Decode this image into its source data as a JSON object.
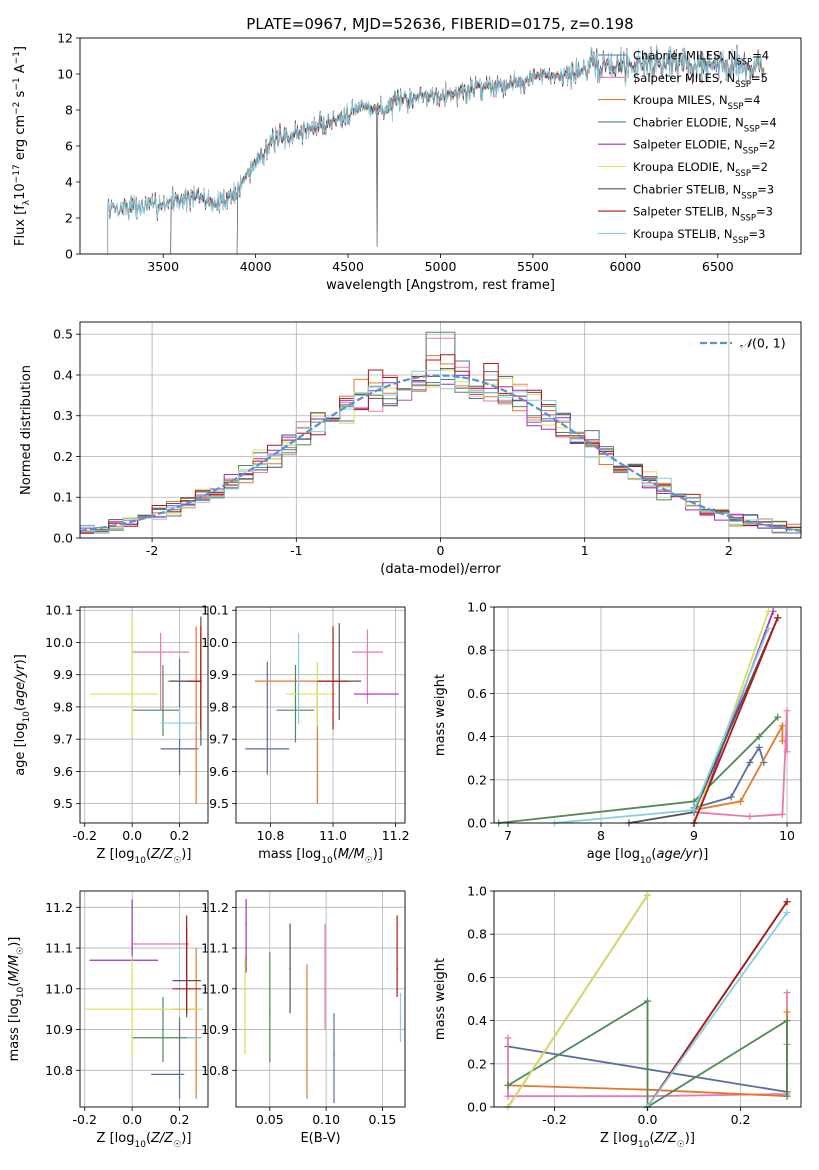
{
  "figure": {
    "title": "PLATE=0967, MJD=52636, FIBERID=0175, z=0.198"
  },
  "colors": {
    "Chabrier MILES": "#5a6e9e",
    "Salpeter MILES": "#e87aaf",
    "Kroupa MILES": "#e2792a",
    "Chabrier ELODIE": "#4f8a56",
    "Salpeter ELODIE": "#a02ec4",
    "Kroupa ELODIE": "#d8e05a",
    "Chabrier STELIB": "#555555",
    "Salpeter STELIB": "#b01818",
    "Kroupa STELIB": "#86cfe0",
    "gaussian": "#5b8fd6"
  },
  "chart_data": [
    {
      "id": "spectrum",
      "type": "line",
      "xlabel": "wavelength [Angstrom, rest frame]",
      "ylabel": "Flux [f_λ 10^-17 erg cm^-2 s^-1 A^-1]",
      "xlim": [
        3050,
        6950
      ],
      "ylim": [
        0,
        12
      ],
      "xticks": [
        3500,
        4000,
        4500,
        5000,
        5500,
        6000,
        6500
      ],
      "yticks": [
        0,
        2,
        4,
        6,
        8,
        10,
        12
      ],
      "grid": false,
      "legend_position": "right",
      "legend": [
        {
          "base": "Chabrier MILES, N",
          "sub": "SSP",
          "tail": "=4"
        },
        {
          "base": "Salpeter MILES, N",
          "sub": "SSP",
          "tail": "=5"
        },
        {
          "base": "Kroupa MILES, N",
          "sub": "SSP",
          "tail": "=4"
        },
        {
          "base": "Chabrier ELODIE, N",
          "sub": "SSP",
          "tail": "=4"
        },
        {
          "base": "Salpeter ELODIE, N",
          "sub": "SSP",
          "tail": "=2"
        },
        {
          "base": "Kroupa ELODIE, N",
          "sub": "SSP",
          "tail": "=2"
        },
        {
          "base": "Chabrier STELIB, N",
          "sub": "SSP",
          "tail": "=3"
        },
        {
          "base": "Salpeter STELIB, N",
          "sub": "SSP",
          "tail": "=3"
        },
        {
          "base": "Kroupa STELIB, N",
          "sub": "SSP",
          "tail": "=3"
        }
      ],
      "continuum": {
        "x": [
          3200,
          3300,
          3450,
          3550,
          3700,
          3800,
          3900,
          4000,
          4100,
          4200,
          4300,
          4400,
          4500,
          4600,
          4700,
          4800,
          4900,
          5000,
          5100,
          5200,
          5300,
          5400,
          5500,
          5600,
          5700,
          5800,
          5900,
          6000,
          6100,
          6200,
          6300,
          6400,
          6500,
          6600,
          6750
        ],
        "y": [
          2.5,
          2.6,
          2.7,
          3.0,
          3.1,
          2.8,
          3.5,
          5.2,
          6.3,
          6.6,
          7.0,
          7.3,
          7.9,
          8.2,
          8.0,
          8.6,
          8.8,
          8.9,
          8.9,
          9.3,
          9.4,
          9.5,
          9.8,
          9.9,
          10.0,
          10.3,
          10.5,
          10.5,
          10.6,
          10.6,
          10.7,
          10.4,
          10.5,
          10.6,
          10.3
        ]
      },
      "series_ranges": {
        "Chabrier MILES": [
          3540,
          6750
        ],
        "Salpeter MILES": [
          3540,
          6750
        ],
        "Kroupa MILES": [
          3540,
          6750
        ],
        "Chabrier ELODIE": [
          3900,
          6750
        ],
        "Salpeter ELODIE": [
          3900,
          6750
        ],
        "Kroupa ELODIE": [
          3900,
          6750
        ],
        "Chabrier STELIB": [
          3200,
          6750
        ],
        "Salpeter STELIB": [
          3200,
          6750
        ],
        "Kroupa STELIB": [
          3200,
          6750
        ]
      }
    },
    {
      "id": "residuals",
      "type": "line",
      "xlabel": "(data-model)/error",
      "ylabel": "Normed distribution",
      "xlim": [
        -2.5,
        2.5
      ],
      "ylim": [
        0,
        0.53
      ],
      "xticks": [
        -2,
        -1,
        0,
        1,
        2
      ],
      "yticks": [
        0.0,
        0.1,
        0.2,
        0.3,
        0.4,
        0.5
      ],
      "grid": true,
      "legend_position": "top-right",
      "legend_label": "N(0,1)",
      "bin_width": 0.1,
      "bin_start": -2.5,
      "bins": 50
    },
    {
      "id": "age_vs_Z",
      "type": "scatter",
      "xlabel": "Z [log10(Z/Z☉)]",
      "ylabel": "age [log10(age/yr)]",
      "xlim": [
        -0.22,
        0.32
      ],
      "ylim": [
        9.44,
        10.11
      ],
      "xticks": [
        -0.2,
        0.0,
        0.2
      ],
      "yticks": [
        9.5,
        9.6,
        9.7,
        9.8,
        9.9,
        10.0,
        10.1
      ],
      "grid": true,
      "points": [
        {
          "model": "Chabrier MILES",
          "x": 0.2,
          "y": 9.67,
          "xerr": [
            0.08,
            0.08
          ],
          "yerr": [
            0.08,
            0.28
          ]
        },
        {
          "model": "Salpeter MILES",
          "x": 0.12,
          "y": 9.97,
          "xerr": [
            0.12,
            0.12
          ],
          "yerr": [
            0.18,
            0.06
          ]
        },
        {
          "model": "Kroupa MILES",
          "x": 0.27,
          "y": 9.88,
          "xerr": [
            0.12,
            0.02
          ],
          "yerr": [
            0.38,
            0.17
          ]
        },
        {
          "model": "Chabrier ELODIE",
          "x": 0.13,
          "y": 9.79,
          "xerr": [
            0.13,
            0.07
          ],
          "yerr": [
            0.08,
            0.14
          ]
        },
        {
          "model": "Salpeter ELODIE",
          "x": 0.29,
          "y": 9.88,
          "xerr": [
            0.08,
            0.0
          ],
          "yerr": [
            0.15,
            0.15
          ]
        },
        {
          "model": "Kroupa ELODIE",
          "x": 0.0,
          "y": 9.84,
          "xerr": [
            0.18,
            0.11
          ],
          "yerr": [
            0.13,
            0.24
          ]
        },
        {
          "model": "Chabrier STELIB",
          "x": 0.29,
          "y": 9.88,
          "xerr": [
            0.13,
            0.0
          ],
          "yerr": [
            0.2,
            0.2
          ]
        },
        {
          "model": "Salpeter STELIB",
          "x": 0.29,
          "y": 9.88,
          "xerr": [
            0.05,
            0.0
          ],
          "yerr": [
            0.15,
            0.17
          ]
        },
        {
          "model": "Kroupa STELIB",
          "x": 0.2,
          "y": 9.75,
          "xerr": [
            0.08,
            0.08
          ],
          "yerr": [
            0.05,
            0.05
          ]
        }
      ]
    },
    {
      "id": "age_vs_mass",
      "type": "scatter",
      "xlabel": "mass [log10(M/M☉)]",
      "ylabel": "",
      "xlim": [
        10.69,
        11.23
      ],
      "ylim": [
        9.44,
        10.11
      ],
      "xticks": [
        10.8,
        11.0,
        11.2
      ],
      "yticks": [
        9.5,
        9.6,
        9.7,
        9.8,
        9.9,
        10.0,
        10.1
      ],
      "grid": true,
      "points": [
        {
          "model": "Chabrier MILES",
          "x": 10.79,
          "y": 9.67,
          "xerr": [
            0.07,
            0.07
          ],
          "yerr": [
            0.08,
            0.27
          ]
        },
        {
          "model": "Salpeter MILES",
          "x": 11.11,
          "y": 9.97,
          "xerr": [
            0.05,
            0.05
          ],
          "yerr": [
            0.16,
            0.07
          ]
        },
        {
          "model": "Kroupa MILES",
          "x": 10.95,
          "y": 9.88,
          "xerr": [
            0.2,
            0.0
          ],
          "yerr": [
            0.38,
            0.0
          ]
        },
        {
          "model": "Chabrier ELODIE",
          "x": 10.88,
          "y": 9.79,
          "xerr": [
            0.06,
            0.06
          ],
          "yerr": [
            0.1,
            0.14
          ]
        },
        {
          "model": "Salpeter ELODIE",
          "x": 11.07,
          "y": 9.84,
          "xerr": [
            0.0,
            0.14
          ],
          "yerr": [
            0.0,
            0.0
          ]
        },
        {
          "model": "Kroupa ELODIE",
          "x": 10.95,
          "y": 9.84,
          "xerr": [
            0.1,
            0.06
          ],
          "yerr": [
            0.1,
            0.1
          ]
        },
        {
          "model": "Chabrier STELIB",
          "x": 11.02,
          "y": 9.88,
          "xerr": [
            0.07,
            0.07
          ],
          "yerr": [
            0.12,
            0.18
          ]
        },
        {
          "model": "Salpeter STELIB",
          "x": 11.0,
          "y": 9.88,
          "xerr": [
            0.05,
            0.05
          ],
          "yerr": [
            0.15,
            0.17
          ]
        },
        {
          "model": "Kroupa STELIB",
          "x": 10.89,
          "y": 9.75,
          "xerr": [
            0.0,
            0.0
          ],
          "yerr": [
            0.0,
            0.28
          ]
        }
      ]
    },
    {
      "id": "mass_weight_vs_age",
      "type": "line",
      "xlabel": "age [log10(age/yr)]",
      "ylabel": "mass weight",
      "xlim": [
        6.85,
        10.15
      ],
      "ylim": [
        0,
        1
      ],
      "xticks": [
        7,
        8,
        9,
        10
      ],
      "yticks": [
        0.0,
        0.2,
        0.4,
        0.6,
        0.8,
        1.0
      ],
      "grid": true,
      "series": [
        {
          "model": "Chabrier MILES",
          "x": [
            9.0,
            9.4,
            9.6,
            9.7,
            9.75
          ],
          "y": [
            0.07,
            0.12,
            0.28,
            0.35,
            0.28
          ]
        },
        {
          "model": "Salpeter MILES",
          "x": [
            9.0,
            9.6,
            9.95,
            10.0,
            10.0
          ],
          "y": [
            0.05,
            0.03,
            0.04,
            0.52,
            0.33
          ]
        },
        {
          "model": "Kroupa MILES",
          "x": [
            9.0,
            9.5,
            9.95,
            9.95
          ],
          "y": [
            0.06,
            0.1,
            0.45,
            0.38
          ]
        },
        {
          "model": "Chabrier ELODIE",
          "x": [
            6.9,
            9.0,
            9.7,
            9.9
          ],
          "y": [
            0.0,
            0.1,
            0.4,
            0.49
          ]
        },
        {
          "model": "Salpeter ELODIE",
          "x": [
            9.0,
            9.85
          ],
          "y": [
            0.0,
            0.98
          ]
        },
        {
          "model": "Kroupa ELODIE",
          "x": [
            9.0,
            9.8
          ],
          "y": [
            0.0,
            0.98
          ]
        },
        {
          "model": "Chabrier STELIB",
          "x": [
            8.3,
            9.0,
            9.9
          ],
          "y": [
            0.0,
            0.05,
            0.95
          ]
        },
        {
          "model": "Salpeter STELIB",
          "x": [
            9.0,
            9.9
          ],
          "y": [
            0.0,
            0.95
          ]
        },
        {
          "model": "Kroupa STELIB",
          "x": [
            7.5,
            9.0,
            9.8
          ],
          "y": [
            0.0,
            0.06,
            0.9
          ]
        }
      ]
    },
    {
      "id": "mass_vs_Z",
      "type": "scatter",
      "xlabel": "Z [log10(Z/Z☉)]",
      "ylabel": "mass [log10(M/M☉)]",
      "xlim": [
        -0.22,
        0.32
      ],
      "ylim": [
        10.71,
        11.24
      ],
      "xticks": [
        -0.2,
        0.0,
        0.2
      ],
      "yticks": [
        10.8,
        10.9,
        11.0,
        11.1,
        11.2
      ],
      "grid": true,
      "points": [
        {
          "model": "Chabrier MILES",
          "x": 0.2,
          "y": 10.79,
          "xerr": [
            0.12,
            0.02
          ],
          "yerr": [
            0.06,
            0.14
          ]
        },
        {
          "model": "Salpeter MILES",
          "x": 0.12,
          "y": 11.11,
          "xerr": [
            0.12,
            0.12
          ],
          "yerr": [
            0.0,
            0.0
          ]
        },
        {
          "model": "Kroupa MILES",
          "x": 0.27,
          "y": 10.95,
          "xerr": [
            0.1,
            0.0
          ],
          "yerr": [
            0.22,
            0.15
          ]
        },
        {
          "model": "Chabrier ELODIE",
          "x": 0.13,
          "y": 10.88,
          "xerr": [
            0.13,
            0.16
          ],
          "yerr": [
            0.06,
            0.1
          ]
        },
        {
          "model": "Salpeter ELODIE",
          "x": 0.0,
          "y": 11.07,
          "xerr": [
            0.18,
            0.11
          ],
          "yerr": [
            0.0,
            0.15
          ]
        },
        {
          "model": "Kroupa ELODIE",
          "x": 0.0,
          "y": 10.95,
          "xerr": [
            0.2,
            0.3
          ],
          "yerr": [
            0.11,
            0.13
          ]
        },
        {
          "model": "Chabrier STELIB",
          "x": 0.23,
          "y": 11.02,
          "xerr": [
            0.06,
            0.06
          ],
          "yerr": [
            0.09,
            0.13
          ]
        },
        {
          "model": "Salpeter STELIB",
          "x": 0.23,
          "y": 11.0,
          "xerr": [
            0.06,
            0.06
          ],
          "yerr": [
            0.06,
            0.18
          ]
        },
        {
          "model": "Kroupa STELIB",
          "x": 0.29,
          "y": 10.88,
          "xerr": [
            0.06,
            0.0
          ],
          "yerr": [
            0.0,
            0.0
          ]
        }
      ]
    },
    {
      "id": "mass_vs_ebv",
      "type": "scatter",
      "xlabel": "E(B-V)",
      "ylabel": "",
      "xlim": [
        0.02,
        0.17
      ],
      "ylim": [
        10.71,
        11.24
      ],
      "xticks": [
        0.05,
        0.1,
        0.15
      ],
      "yticks": [
        10.8,
        10.9,
        11.0,
        11.1,
        11.2
      ],
      "grid": true,
      "points": [
        {
          "model": "Chabrier MILES",
          "x": 0.107,
          "y": 10.84,
          "xerr": [
            0,
            0
          ],
          "yerr": [
            0.12,
            0.1
          ]
        },
        {
          "model": "Salpeter MILES",
          "x": 0.099,
          "y": 11.0,
          "xerr": [
            0,
            0
          ],
          "yerr": [
            0.1,
            0.16
          ]
        },
        {
          "model": "Kroupa MILES",
          "x": 0.083,
          "y": 10.93,
          "xerr": [
            0,
            0
          ],
          "yerr": [
            0.2,
            0.13
          ]
        },
        {
          "model": "Chabrier ELODIE",
          "x": 0.05,
          "y": 10.94,
          "xerr": [
            0,
            0
          ],
          "yerr": [
            0.12,
            0.15
          ]
        },
        {
          "model": "Salpeter ELODIE",
          "x": 0.029,
          "y": 11.16,
          "xerr": [
            0,
            0
          ],
          "yerr": [
            0.12,
            0.06
          ]
        },
        {
          "model": "Kroupa ELODIE",
          "x": 0.028,
          "y": 10.95,
          "xerr": [
            0,
            0
          ],
          "yerr": [
            0.11,
            0.13
          ]
        },
        {
          "model": "Chabrier STELIB",
          "x": 0.068,
          "y": 11.05,
          "xerr": [
            0,
            0
          ],
          "yerr": [
            0.11,
            0.11
          ]
        },
        {
          "model": "Salpeter STELIB",
          "x": 0.163,
          "y": 11.05,
          "xerr": [
            0,
            0
          ],
          "yerr": [
            0.07,
            0.13
          ]
        },
        {
          "model": "Kroupa STELIB",
          "x": 0.166,
          "y": 10.93,
          "xerr": [
            0,
            0
          ],
          "yerr": [
            0.06,
            0.06
          ]
        }
      ]
    },
    {
      "id": "mass_weight_vs_Z",
      "type": "line",
      "xlabel": "Z [log10(Z/Z☉)]",
      "ylabel": "mass weight",
      "xlim": [
        -0.33,
        0.33
      ],
      "ylim": [
        0,
        1
      ],
      "xticks": [
        -0.2,
        0.0,
        0.2
      ],
      "yticks": [
        0.0,
        0.2,
        0.4,
        0.6,
        0.8,
        1.0
      ],
      "grid": true,
      "series": [
        {
          "model": "Chabrier MILES",
          "x": [
            -0.3,
            0.3
          ],
          "y": [
            0.28,
            0.07
          ]
        },
        {
          "model": "Salpeter MILES",
          "x": [
            -0.3,
            -0.3,
            0.0,
            0.3,
            0.3,
            0.3
          ],
          "y": [
            0.32,
            0.05,
            0.05,
            0.06,
            0.53,
            0.29
          ]
        },
        {
          "model": "Kroupa MILES",
          "x": [
            -0.3,
            0.0,
            0.3,
            0.3
          ],
          "y": [
            0.1,
            0.08,
            0.05,
            0.44
          ]
        },
        {
          "model": "Chabrier ELODIE",
          "x": [
            -0.3,
            0.0,
            0.0,
            0.3,
            0.3
          ],
          "y": [
            0.1,
            0.49,
            0.0,
            0.4,
            0.05
          ]
        },
        {
          "model": "Salpeter ELODIE",
          "x": [
            -0.3,
            0.0
          ],
          "y": [
            0.0,
            0.98
          ]
        },
        {
          "model": "Kroupa ELODIE",
          "x": [
            -0.3,
            0.0
          ],
          "y": [
            0.0,
            0.98
          ]
        },
        {
          "model": "Chabrier STELIB",
          "x": [
            0.0,
            0.3
          ],
          "y": [
            0.0,
            0.95
          ]
        },
        {
          "model": "Salpeter STELIB",
          "x": [
            0.0,
            0.3
          ],
          "y": [
            0.0,
            0.95
          ]
        },
        {
          "model": "Kroupa STELIB",
          "x": [
            0.0,
            0.3
          ],
          "y": [
            0.0,
            0.9
          ]
        }
      ]
    }
  ]
}
